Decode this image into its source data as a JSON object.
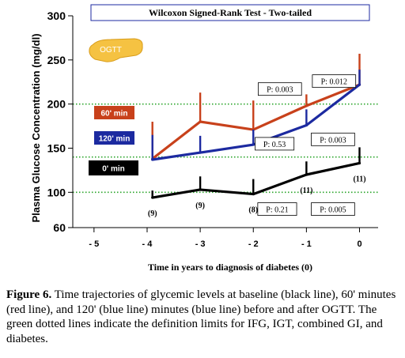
{
  "chart_data": {
    "type": "line",
    "title": "Wilcoxon Signed-Rank Test - Two-tailed",
    "xlabel": "Time in years to diagnosis of diabetes (0)",
    "ylabel": "Plasma Glucose Concentration (mg/dl)",
    "xlim": [
      -5.4,
      0.35
    ],
    "ylim": [
      60,
      300
    ],
    "x_ticks": [
      -5,
      -4,
      -3,
      -2,
      -1,
      0
    ],
    "x_tick_labels": [
      "- 5",
      "- 4",
      "- 3",
      "- 2",
      "- 1",
      "0"
    ],
    "y_ticks": [
      60,
      100,
      150,
      200,
      250,
      300
    ],
    "x": [
      -3.9,
      -3,
      -2,
      -1,
      0
    ],
    "series": [
      {
        "name": "0' min",
        "color": "#000000",
        "values": [
          94,
          103,
          98,
          120,
          133
        ],
        "errors": [
          8,
          15,
          17,
          15,
          18
        ],
        "n_labels": [
          "(9)",
          "(9)",
          "(8)",
          "(11)",
          "(11)"
        ]
      },
      {
        "name": "60' min",
        "color": "#c8411b",
        "values": [
          138,
          180,
          171,
          198,
          222
        ],
        "errors": [
          42,
          33,
          33,
          13,
          35
        ]
      },
      {
        "name": "120' min",
        "color": "#1c2aa0",
        "values": [
          137,
          145,
          154,
          176,
          222
        ],
        "errors": [
          28,
          19,
          17,
          18,
          17
        ]
      }
    ],
    "reference_lines": [
      {
        "value": 100,
        "color": "#2aa52a",
        "style": "dotted"
      },
      {
        "value": 140,
        "color": "#2aa52a",
        "style": "dotted"
      },
      {
        "value": 200,
        "color": "#2aa52a",
        "style": "dotted"
      }
    ],
    "annotations": [
      {
        "text": "P: 0.003",
        "x": -1.5,
        "y": 217
      },
      {
        "text": "P: 0.012",
        "x": -0.48,
        "y": 226
      },
      {
        "text": "P: 0.53",
        "x": -1.6,
        "y": 155
      },
      {
        "text": "P: 0.003",
        "x": -0.5,
        "y": 160
      },
      {
        "text": "P: 0.21",
        "x": -1.55,
        "y": 81
      },
      {
        "text": "P: 0.005",
        "x": -0.5,
        "y": 81
      }
    ],
    "tags": {
      "ogtt": "OGTT",
      "min60": "60' min",
      "min120": "120' min",
      "min0": "0' min"
    }
  },
  "caption": {
    "label": "Figure 6.",
    "text": " Time trajectories of glycemic levels at baseline (black line), 60' minutes (red line), and 120' (blue line) minutes (blue line) before and after OGTT. The green dotted lines indicate the definition limits for IFG, IGT, combined GI, and diabetes."
  }
}
